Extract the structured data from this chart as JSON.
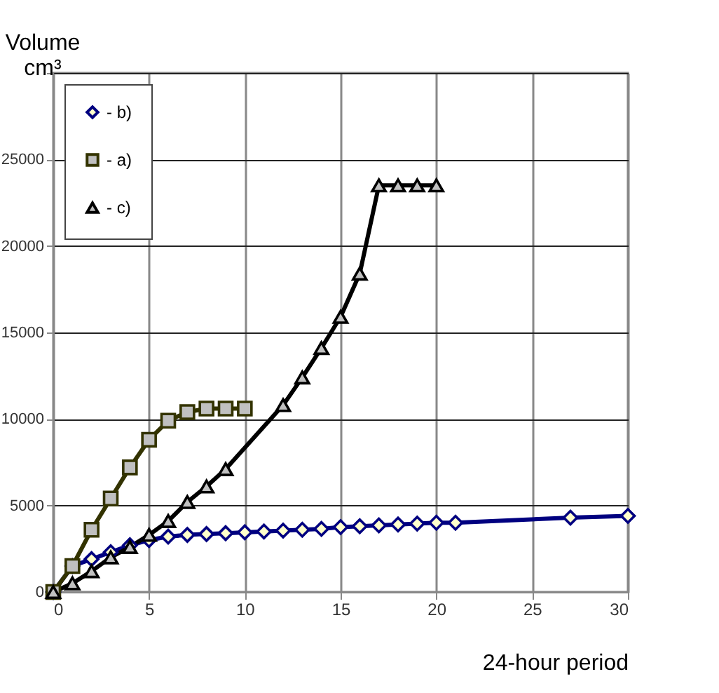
{
  "chart_data": {
    "type": "line",
    "xlabel": "24-hour period",
    "ylabel": "Volume cm³",
    "xlim": [
      0,
      30
    ],
    "xticks": [
      0,
      5,
      10,
      15,
      20,
      25,
      30
    ],
    "ylim": [
      0,
      30000
    ],
    "yticks": [
      0,
      5000,
      10000,
      15000,
      20000,
      25000,
      {
        "value": 30000,
        "label": null
      }
    ],
    "grid": true,
    "legend": "top left",
    "series": [
      {
        "name": "- b)",
        "color": "#000080",
        "marker": "diamond",
        "x": [
          0,
          1,
          2,
          3,
          4,
          5,
          6,
          7,
          8,
          9,
          10,
          11,
          12,
          13,
          14,
          15,
          16,
          17,
          18,
          19,
          20,
          21,
          27,
          30
        ],
        "values": [
          0,
          1500,
          1900,
          2300,
          2700,
          3000,
          3200,
          3300,
          3350,
          3400,
          3450,
          3500,
          3550,
          3600,
          3650,
          3750,
          3800,
          3850,
          3900,
          3950,
          4000,
          4000,
          4300,
          4400
        ]
      },
      {
        "name": "- a)",
        "color": "#333300",
        "marker": "square",
        "x": [
          0,
          1,
          2,
          3,
          4,
          5,
          6,
          7,
          8,
          9,
          10
        ],
        "values": [
          0,
          1500,
          3600,
          5400,
          7200,
          8800,
          9900,
          10400,
          10600,
          10600,
          10600
        ]
      },
      {
        "name": "- c)",
        "color": "#000000",
        "marker": "triangle",
        "x": [
          0,
          1,
          2,
          3,
          4,
          5,
          6,
          7,
          8,
          9,
          12,
          13,
          14,
          15,
          16,
          17,
          18,
          19,
          20
        ],
        "values": [
          0,
          500,
          1200,
          2000,
          2600,
          3300,
          4100,
          5200,
          6100,
          7100,
          10800,
          12400,
          14100,
          15900,
          18400,
          23500,
          23500,
          23500,
          23500
        ]
      }
    ]
  }
}
